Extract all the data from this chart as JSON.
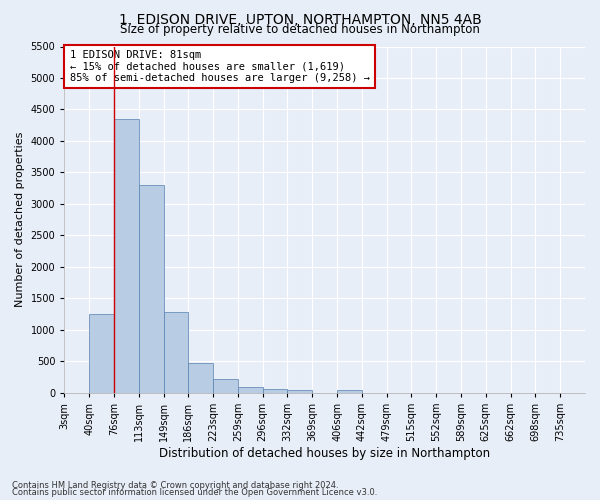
{
  "title": "1, EDISON DRIVE, UPTON, NORTHAMPTON, NN5 4AB",
  "subtitle": "Size of property relative to detached houses in Northampton",
  "xlabel": "Distribution of detached houses by size in Northampton",
  "ylabel": "Number of detached properties",
  "footer1": "Contains HM Land Registry data © Crown copyright and database right 2024.",
  "footer2": "Contains public sector information licensed under the Open Government Licence v3.0.",
  "categories": [
    "3sqm",
    "40sqm",
    "76sqm",
    "113sqm",
    "149sqm",
    "186sqm",
    "223sqm",
    "259sqm",
    "296sqm",
    "332sqm",
    "369sqm",
    "406sqm",
    "442sqm",
    "479sqm",
    "515sqm",
    "552sqm",
    "589sqm",
    "625sqm",
    "662sqm",
    "698sqm",
    "735sqm"
  ],
  "values": [
    0,
    1250,
    4350,
    3300,
    1280,
    480,
    220,
    90,
    65,
    50,
    0,
    50,
    0,
    0,
    0,
    0,
    0,
    0,
    0,
    0,
    0
  ],
  "bar_color": "#b8cce4",
  "bar_edge_color": "#5580b0",
  "bg_color": "#e8eef8",
  "plot_bg_color": "#e8eef8",
  "grid_color": "#ffffff",
  "annotation_text": "1 EDISON DRIVE: 81sqm\n← 15% of detached houses are smaller (1,619)\n85% of semi-detached houses are larger (9,258) →",
  "annotation_box_facecolor": "#ffffff",
  "annotation_box_edgecolor": "#cc0000",
  "vline_color": "#cc0000",
  "vline_x_index": 2,
  "ylim": [
    0,
    5500
  ],
  "yticks": [
    0,
    500,
    1000,
    1500,
    2000,
    2500,
    3000,
    3500,
    4000,
    4500,
    5000,
    5500
  ],
  "title_fontsize": 10,
  "subtitle_fontsize": 8.5,
  "xlabel_fontsize": 8.5,
  "ylabel_fontsize": 8,
  "tick_fontsize": 7,
  "footer_fontsize": 6
}
